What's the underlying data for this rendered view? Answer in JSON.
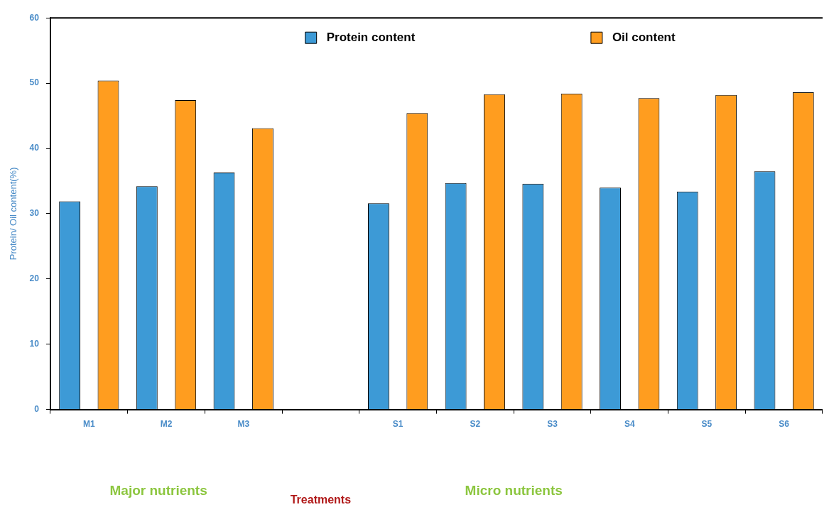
{
  "chart_data": {
    "type": "bar",
    "ylabel": "Protein/ Oil content(%)",
    "categories": [
      "M1",
      "M2",
      "M3",
      null,
      "S1",
      "S2",
      "S3",
      "S4",
      "S5",
      "S6"
    ],
    "series": [
      {
        "name": "Protein content",
        "color": "#3d9ad6",
        "values": [
          31.9,
          34.2,
          36.3,
          null,
          31.6,
          34.7,
          34.6,
          34.0,
          33.4,
          36.5
        ]
      },
      {
        "name": "Oil content",
        "color": "#ff9d1f",
        "values": [
          50.4,
          47.4,
          43.1,
          null,
          45.4,
          48.3,
          48.4,
          47.7,
          48.2,
          48.6
        ]
      }
    ],
    "ylim": [
      0,
      60
    ],
    "yticks": [
      0,
      10,
      20,
      30,
      40,
      50,
      60
    ],
    "grid": false,
    "legend": "top",
    "annotations": [
      "Major nutrients",
      "Treatments",
      "Micro nutrients"
    ]
  }
}
